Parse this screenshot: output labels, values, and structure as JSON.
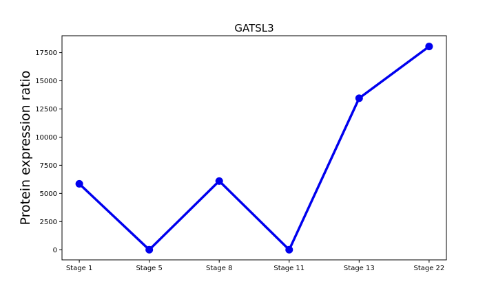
{
  "chart_data": {
    "type": "line",
    "title": "GATSL3",
    "xlabel": "",
    "ylabel": "Protein expression ratio",
    "categories": [
      "Stage 1",
      "Stage 5",
      "Stage 8",
      "Stage 11",
      "Stage 13",
      "Stage 22"
    ],
    "series": [
      {
        "values": [
          5850,
          0,
          6100,
          0,
          13450,
          18050
        ],
        "color": "#0000ee"
      }
    ],
    "ylim": [
      -900,
      19000
    ],
    "yticks": [
      0,
      2500,
      5000,
      7500,
      10000,
      12500,
      15000,
      17500
    ],
    "ytick_labels": [
      "0",
      "2500",
      "5000",
      "7500",
      "10000",
      "12500",
      "15000",
      "17500"
    ],
    "grid": false,
    "legend": "none"
  }
}
